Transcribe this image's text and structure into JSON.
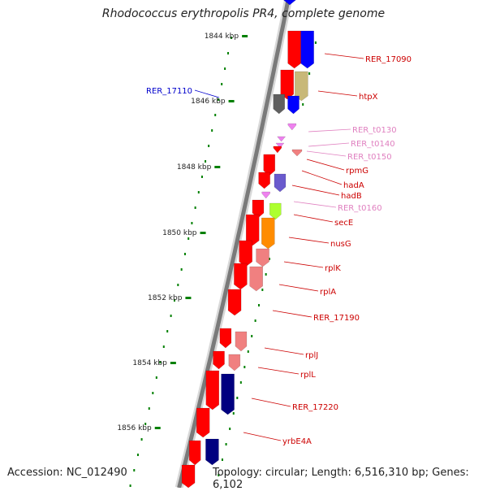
{
  "title": "Rhodococcus erythropolis PR4, complete genome",
  "footer": {
    "accession": "Accession: NC_012490",
    "topology": "Topology: circular; Length: 6,516,310 bp; Genes: 6,102"
  },
  "ticks": [
    "1844 kbp",
    "1846 kbp",
    "1848 kbp",
    "1850 kbp",
    "1852 kbp",
    "1854 kbp",
    "1856 kbp"
  ],
  "colors": {
    "cds": "#ff0000",
    "cds_light": "#f08080",
    "blue": "#0000ff",
    "olive": "#c8b878",
    "pink": "#ee82ee",
    "slate": "#6a5acd",
    "lime": "#adff2f",
    "orange": "#ff8c00",
    "navy": "#000080",
    "gray": "#606060",
    "label_red": "#cc0000",
    "label_pink": "#e080c0",
    "label_blue": "#0000cc",
    "tick_green": "#008000"
  },
  "genes": [
    {
      "name": "RER_17090",
      "color": "label_red"
    },
    {
      "name": "RER_17110",
      "color": "label_blue"
    },
    {
      "name": "htpX",
      "color": "label_red"
    },
    {
      "name": "RER_t0130",
      "color": "label_pink"
    },
    {
      "name": "RER_t0140",
      "color": "label_pink"
    },
    {
      "name": "RER_t0150",
      "color": "label_pink"
    },
    {
      "name": "rpmG",
      "color": "label_red"
    },
    {
      "name": "hadA",
      "color": "label_red"
    },
    {
      "name": "hadB",
      "color": "label_red"
    },
    {
      "name": "RER_t0160",
      "color": "label_pink"
    },
    {
      "name": "secE",
      "color": "label_red"
    },
    {
      "name": "nusG",
      "color": "label_red"
    },
    {
      "name": "rplK",
      "color": "label_red"
    },
    {
      "name": "rplA",
      "color": "label_red"
    },
    {
      "name": "RER_17190",
      "color": "label_red"
    },
    {
      "name": "rplJ",
      "color": "label_red"
    },
    {
      "name": "rplL",
      "color": "label_red"
    },
    {
      "name": "RER_17220",
      "color": "label_red"
    },
    {
      "name": "yrbE4A",
      "color": "label_red"
    }
  ]
}
